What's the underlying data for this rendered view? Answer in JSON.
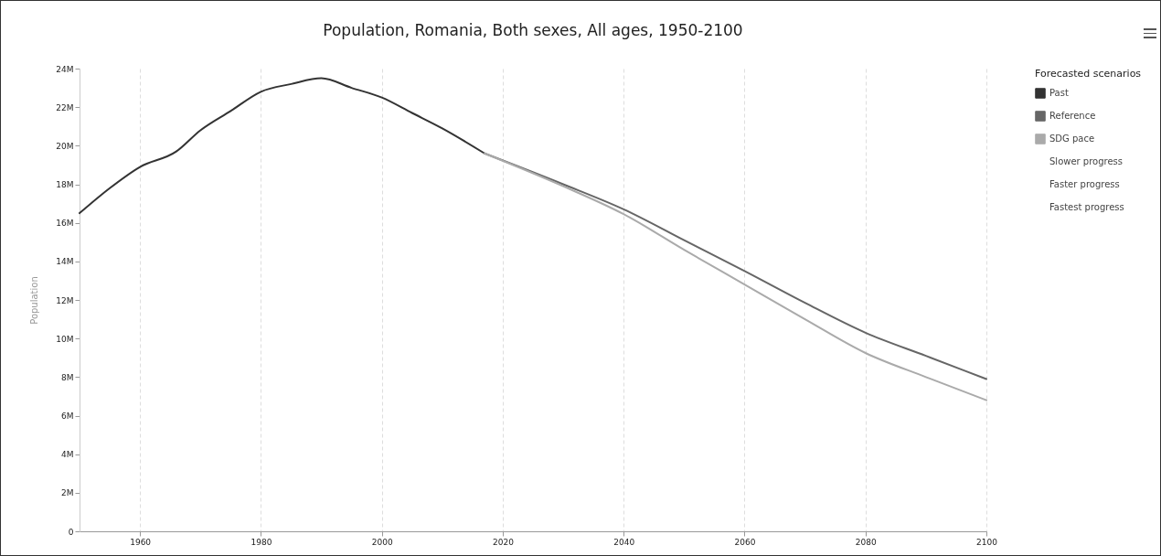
{
  "chart_data": {
    "type": "line",
    "title": "Population, Romania, Both sexes, All ages, 1950-2100",
    "ylabel": "Population",
    "legend_title": "Forecasted scenarios",
    "series": [
      {
        "name": "Past",
        "color": "#333333",
        "x": [
          1950,
          1955,
          1960,
          1966,
          1970,
          1975,
          1980,
          1985,
          1990,
          1995,
          2000,
          2005,
          2010,
          2017
        ],
        "values": [
          16.5,
          17.8,
          18.9,
          19.7,
          20.8,
          21.8,
          22.8,
          23.2,
          23.5,
          23.0,
          22.5,
          21.7,
          20.9,
          19.6
        ]
      },
      {
        "name": "Reference",
        "color": "#666666",
        "x": [
          2017,
          2030,
          2040,
          2050,
          2060,
          2070,
          2080,
          2090,
          2100
        ],
        "values": [
          19.6,
          18.0,
          16.7,
          15.1,
          13.5,
          11.85,
          10.3,
          9.1,
          7.9
        ]
      },
      {
        "name": "SDG pace",
        "color": "#aaaaaa",
        "x": [
          2017,
          2030,
          2040,
          2050,
          2060,
          2070,
          2080,
          2090,
          2100
        ],
        "values": [
          19.6,
          17.9,
          16.45,
          14.6,
          12.8,
          11.0,
          9.25,
          8.0,
          6.8
        ]
      },
      {
        "name": "Slower progress"
      },
      {
        "name": "Faster progress"
      },
      {
        "name": "Fastest progress"
      }
    ],
    "xlim": [
      1950,
      2100
    ],
    "xticks": [
      1960,
      1980,
      2000,
      2020,
      2040,
      2060,
      2080,
      2100
    ],
    "ylim": [
      0,
      24
    ],
    "yticks": [
      0,
      {
        "value": 2,
        "label": "2M"
      },
      {
        "value": 4,
        "label": "4M"
      },
      {
        "value": 6,
        "label": "6M"
      },
      {
        "value": 8,
        "label": "8M"
      },
      {
        "value": 10,
        "label": "10M"
      },
      {
        "value": 12,
        "label": "12M"
      },
      {
        "value": 14,
        "label": "14M"
      },
      {
        "value": 16,
        "label": "16M"
      },
      {
        "value": 18,
        "label": "18M"
      },
      {
        "value": 20,
        "label": "20M"
      },
      {
        "value": 22,
        "label": "22M"
      },
      {
        "value": 24,
        "label": "24M"
      }
    ],
    "grid": "x",
    "legend": "right"
  }
}
